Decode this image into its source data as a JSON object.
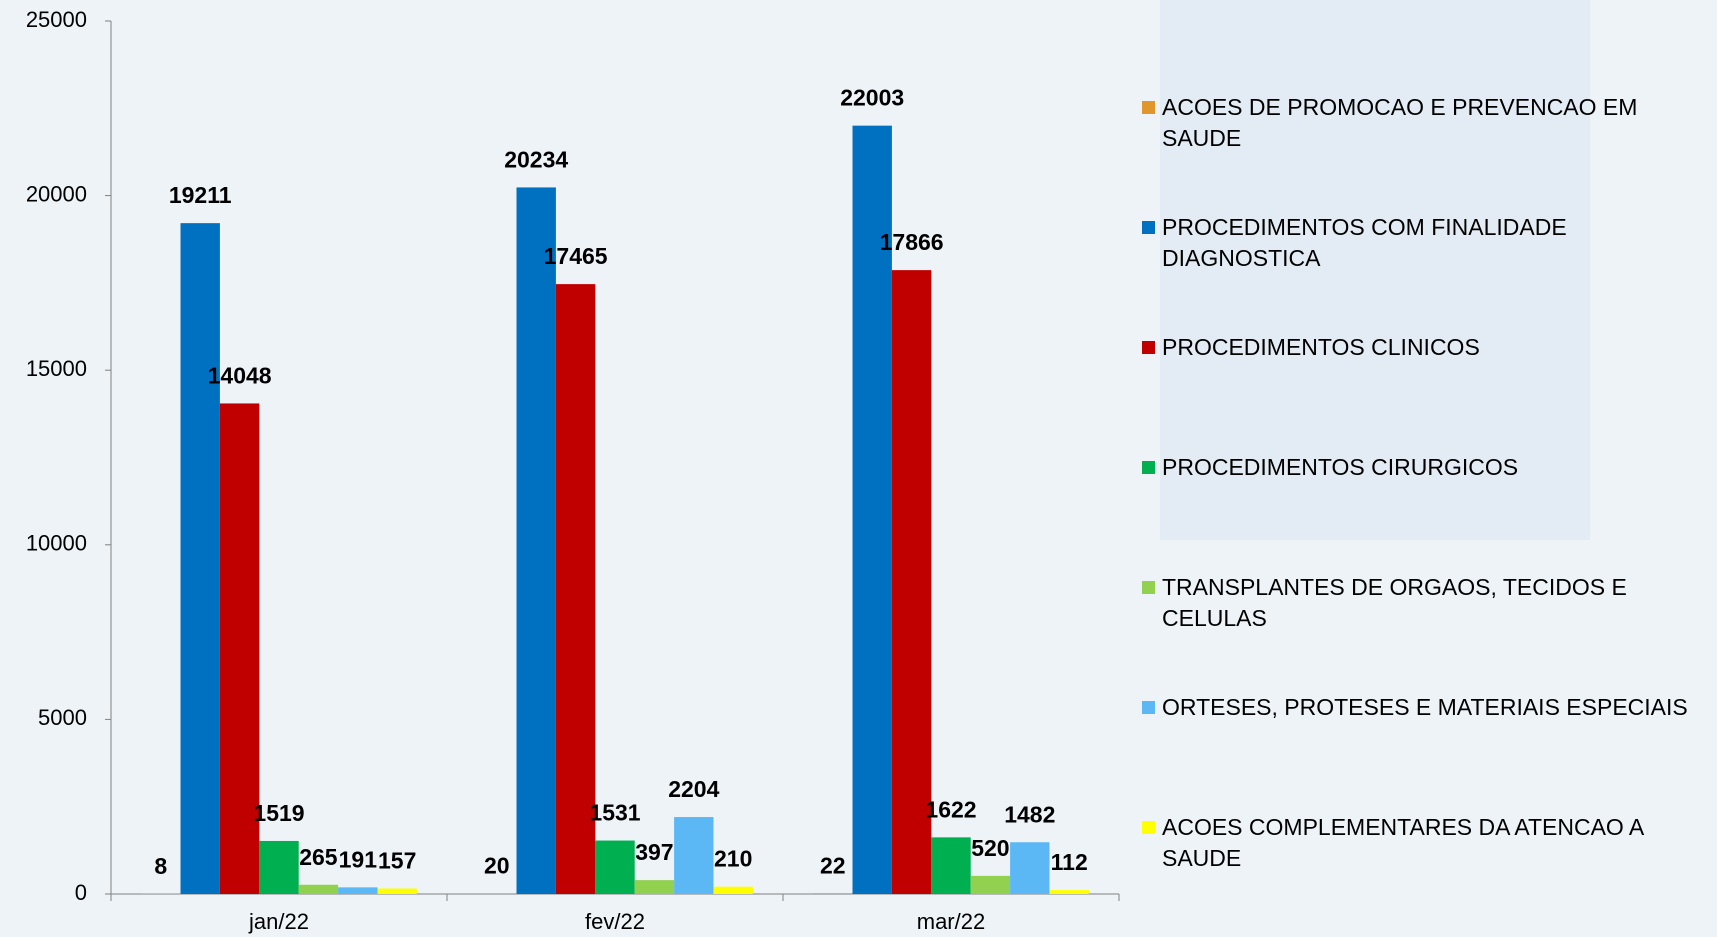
{
  "chart_data": {
    "type": "bar",
    "categories": [
      "jan/22",
      "fev/22",
      "mar/22"
    ],
    "series": [
      {
        "name": "ACOES DE PROMOCAO E PREVENCAO EM SAUDE",
        "color": "#e0962a",
        "values": [
          8,
          20,
          22
        ]
      },
      {
        "name": "PROCEDIMENTOS COM FINALIDADE DIAGNOSTICA",
        "color": "#0070c0",
        "values": [
          19211,
          20234,
          22003
        ]
      },
      {
        "name": "PROCEDIMENTOS CLINICOS",
        "color": "#c00000",
        "values": [
          14048,
          17465,
          17866
        ]
      },
      {
        "name": "PROCEDIMENTOS CIRURGICOS",
        "color": "#00b050",
        "values": [
          1519,
          1531,
          1622
        ]
      },
      {
        "name": "TRANSPLANTES DE ORGAOS, TECIDOS E CELULAS",
        "color": "#92d050",
        "values": [
          265,
          397,
          520
        ]
      },
      {
        "name": "ORTESES, PROTESES E MATERIAIS ESPECIAIS",
        "color": "#5bb8f5",
        "values": [
          191,
          2204,
          1482
        ]
      },
      {
        "name": "ACOES COMPLEMENTARES DA ATENCAO A SAUDE",
        "color": "#ffff00",
        "values": [
          157,
          210,
          112
        ]
      }
    ],
    "ylim": [
      0,
      25000
    ],
    "yticks": [
      0,
      5000,
      10000,
      15000,
      20000,
      25000
    ]
  }
}
